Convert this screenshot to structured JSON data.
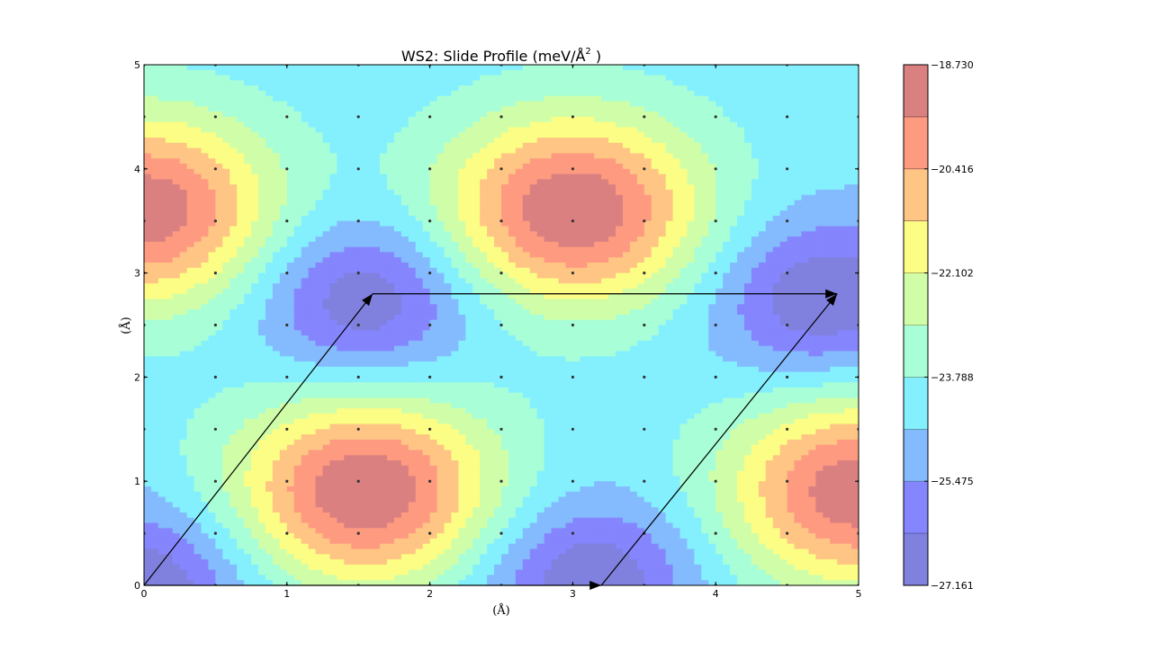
{
  "chart_data": {
    "type": "contour",
    "title": "WS2: Slide Profile (meV/Å",
    "title_superscript": "2",
    "title_close": " )",
    "xlabel": "(Å)",
    "ylabel": "(Å)",
    "xlim": [
      0,
      5
    ],
    "ylim": [
      0,
      5
    ],
    "x_ticks": [
      0,
      1,
      2,
      3,
      4,
      5
    ],
    "y_ticks": [
      0,
      1,
      2,
      3,
      4,
      5
    ],
    "x_tick_labels": [
      "0",
      "1",
      "2",
      "3",
      "4",
      "5"
    ],
    "y_tick_labels": [
      "0",
      "1",
      "2",
      "3",
      "4",
      "5"
    ],
    "colorbar": {
      "min": -27.161,
      "max": -18.73,
      "tick_values": [
        -27.161,
        -25.475,
        -23.788,
        -22.102,
        -20.416,
        -18.73
      ],
      "tick_labels": [
        "−27.161",
        "−25.475",
        "−23.788",
        "−22.102",
        "−20.416",
        "−18.730"
      ],
      "levels": 10,
      "colors": [
        "#8080df",
        "#8585fe",
        "#84bbfe",
        "#84f0fe",
        "#a8fed6",
        "#d0fea8",
        "#fcfd84",
        "#fec584",
        "#fe9a80",
        "#da8080"
      ]
    },
    "peaks": [
      {
        "x": 3.0,
        "y": 3.6,
        "value": -18.73
      },
      {
        "x": 0.0,
        "y": 3.6,
        "value": -18.9
      },
      {
        "x": 1.55,
        "y": 0.9,
        "value": -18.73
      },
      {
        "x": 5.0,
        "y": 0.9,
        "value": -18.9
      }
    ],
    "valleys": [
      {
        "x": 1.55,
        "y": 2.75,
        "value": -27.161
      },
      {
        "x": 4.75,
        "y": 2.75,
        "value": -27.161
      },
      {
        "x": 0.0,
        "y": 0.0,
        "value": -27.161
      },
      {
        "x": 3.1,
        "y": 0.05,
        "value": -27.161
      }
    ],
    "arrows": [
      {
        "from": [
          0,
          0
        ],
        "to": [
          1.6,
          2.8
        ]
      },
      {
        "from": [
          1.6,
          2.8
        ],
        "to": [
          4.85,
          2.8
        ]
      },
      {
        "from": [
          3.2,
          0
        ],
        "to": [
          4.85,
          2.8
        ]
      },
      {
        "from": [
          0,
          0
        ],
        "to": [
          3.2,
          0
        ]
      }
    ],
    "sample_grid": {
      "x_start": 0,
      "x_step": 0.5,
      "y_start": 0,
      "y_step": 0.5,
      "count": 11
    },
    "grid": false,
    "legend": "none"
  }
}
